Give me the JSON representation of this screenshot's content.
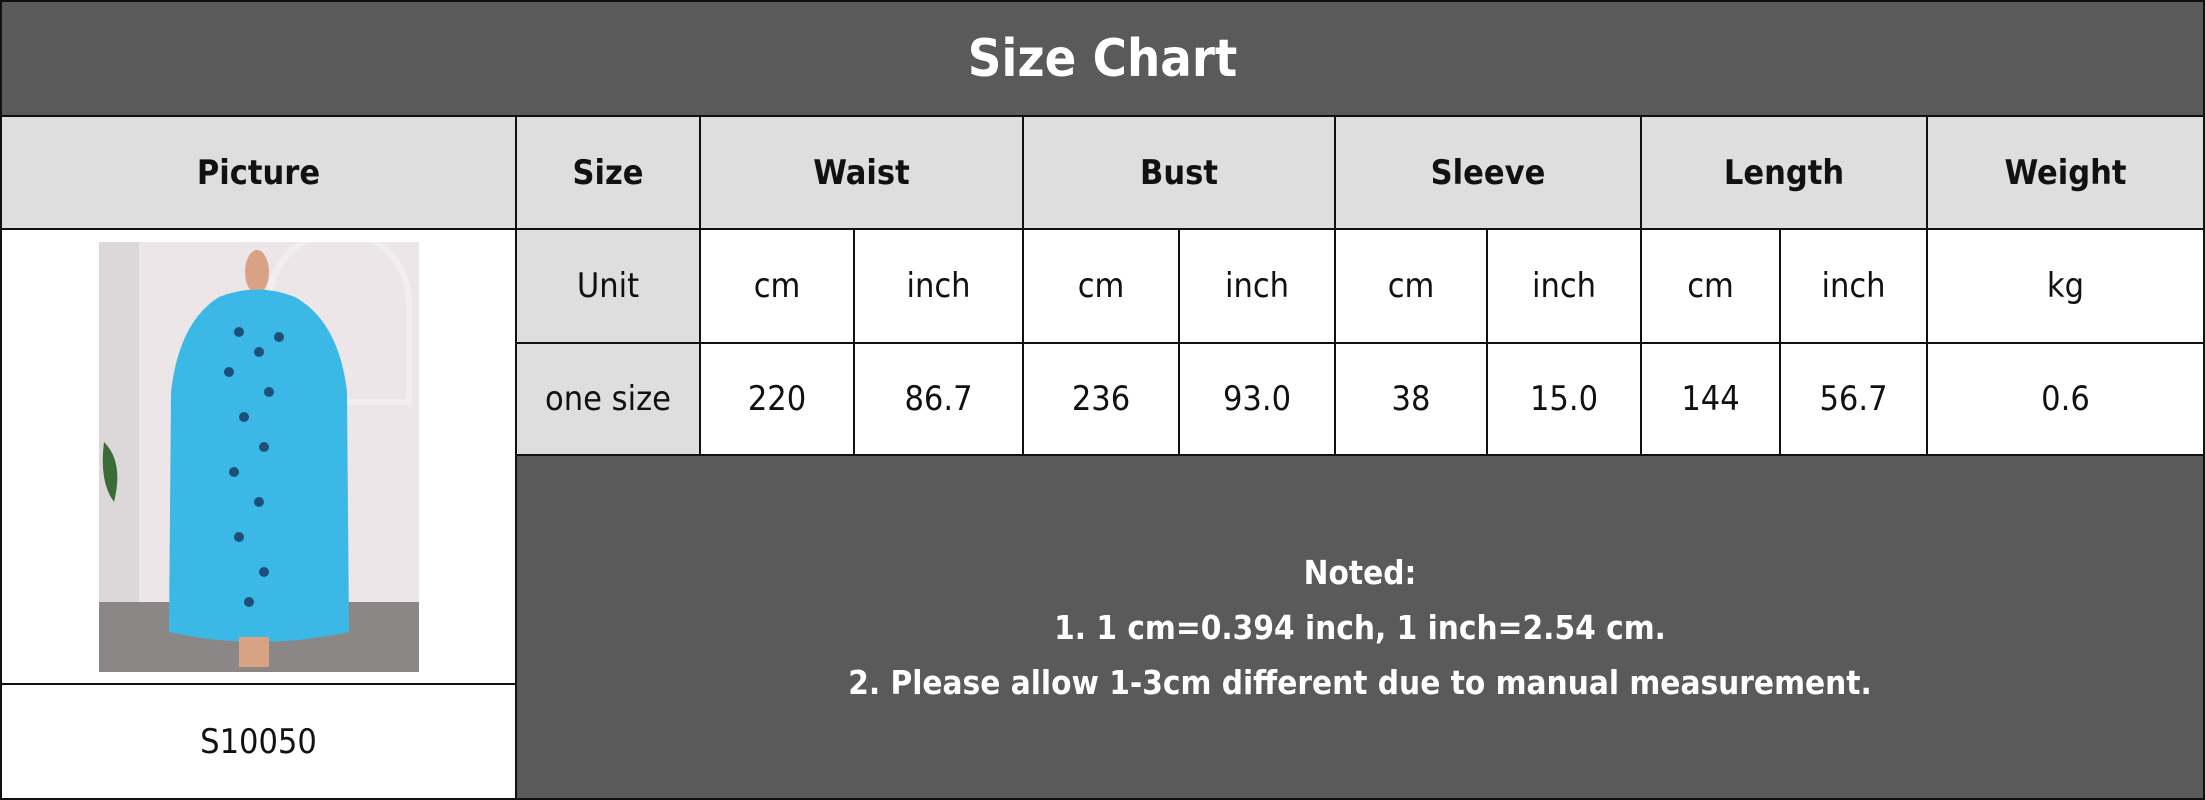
{
  "title": "Size Chart",
  "headers": [
    "Picture",
    "Size",
    "Waist",
    "Bust",
    "Sleeve",
    "Length",
    "Weight"
  ],
  "unit_row": {
    "label": "Unit",
    "values": [
      "cm",
      "inch",
      "cm",
      "inch",
      "cm",
      "inch",
      "cm",
      "inch",
      "kg"
    ]
  },
  "size_row": {
    "label": "one size",
    "values": [
      "220",
      "86.7",
      "236",
      "93.0",
      "38",
      "15.0",
      "144",
      "56.7",
      "0.6"
    ]
  },
  "product_code": "S10050",
  "notes": {
    "heading": "Noted:",
    "lines": [
      "1. 1 cm=0.394 inch, 1 inch=2.54 cm.",
      "2. Please allow 1-3cm different due to manual measurement."
    ]
  },
  "colors": {
    "header_bg": "#5a5a5a",
    "label_bg": "#dedede",
    "dress": "#3cb8e6"
  }
}
